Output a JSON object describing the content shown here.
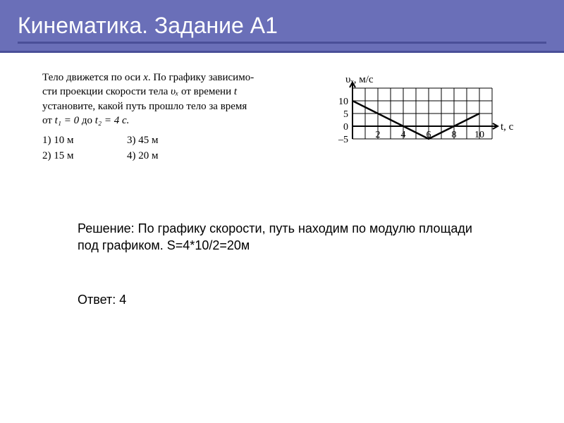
{
  "title": "Кинематика. Задание А1",
  "problem": {
    "line1": "Тело движется по оси ",
    "var_x": "x",
    "line1b": ". По графику зависимо-",
    "line2": "сти проекции скорости тела ",
    "var_vx": "υₓ",
    "line2b": " от времени ",
    "var_t": "t",
    "line3": "установите, какой путь прошло тело за время",
    "line4a": "от ",
    "t1_label": "t₁ = 0",
    "line4b": " до ",
    "t2_label": "t₂ = 4 с."
  },
  "options": {
    "o1": "1) 10 м",
    "o2": "2) 15 м",
    "o3": "3) 45 м",
    "o4": "4) 20 м"
  },
  "chart": {
    "y_axis_label": "υₓ, м/с",
    "x_axis_label": "t, с",
    "grid_color": "#000000",
    "line_color": "#000000",
    "bg_color": "#ffffff",
    "cell": 18,
    "cols": 11,
    "rows": 4,
    "y_zero_row": 3,
    "y_ticks": [
      {
        "v": 10,
        "label": "10"
      },
      {
        "v": 5,
        "label": "5"
      },
      {
        "v": 0,
        "label": "0"
      },
      {
        "v": -5,
        "label": "–5"
      }
    ],
    "x_ticks": [
      {
        "v": 2,
        "label": "2"
      },
      {
        "v": 4,
        "label": "4"
      },
      {
        "v": 6,
        "label": "6"
      },
      {
        "v": 8,
        "label": "8"
      },
      {
        "v": 10,
        "label": "10"
      }
    ],
    "series": [
      {
        "t": 0,
        "v": 10
      },
      {
        "t": 6,
        "v": -5
      },
      {
        "t": 10,
        "v": 5
      }
    ]
  },
  "solution_text": "Решение: По графику скорости, путь находим по модулю площади под графиком. S=4*10/2=20м",
  "answer_text": "Ответ: 4"
}
